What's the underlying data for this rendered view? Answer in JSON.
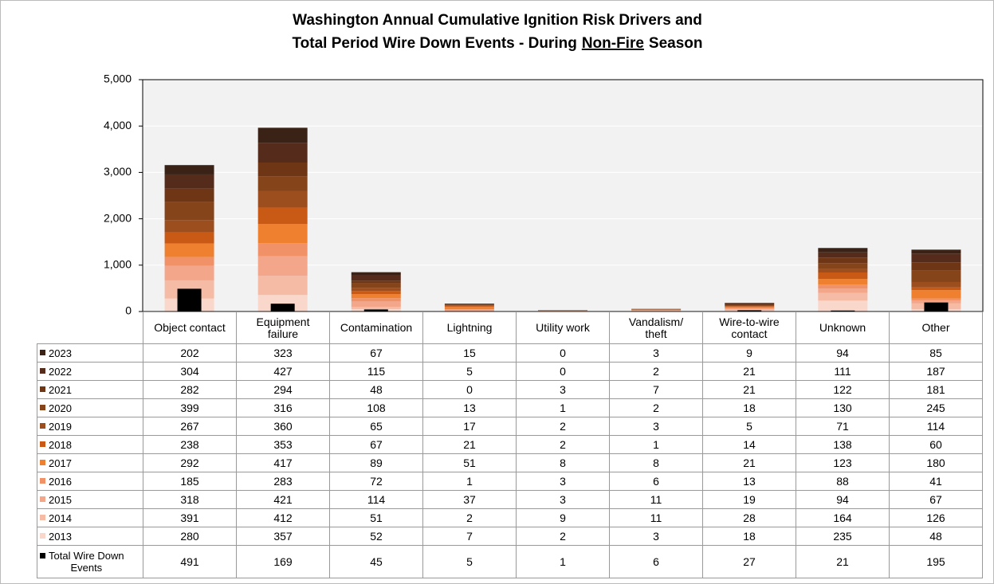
{
  "chart_data": {
    "type": "stacked_bar",
    "title": [
      "Washington Annual Cumulative Ignition Risk Drivers and",
      [
        "Total Period Wire Down Events - During",
        "Non-Fire",
        "Season"
      ]
    ],
    "categories": [
      "Object contact",
      "Equipment\nfailure",
      "Contamination",
      "Lightning",
      "Utility work",
      "Vandalism/\ntheft",
      "Wire-to-wire\ncontact",
      "Unknown",
      "Other"
    ],
    "series": [
      {
        "name": "2023",
        "color": "#3b2216",
        "values": [
          202,
          323,
          67,
          15,
          0,
          3,
          9,
          94,
          85
        ]
      },
      {
        "name": "2022",
        "color": "#552c1c",
        "values": [
          304,
          427,
          115,
          5,
          0,
          2,
          21,
          111,
          187
        ]
      },
      {
        "name": "2021",
        "color": "#6e3615",
        "values": [
          282,
          294,
          48,
          0,
          3,
          7,
          21,
          122,
          181
        ]
      },
      {
        "name": "2020",
        "color": "#86441a",
        "values": [
          399,
          316,
          108,
          13,
          1,
          2,
          18,
          130,
          245
        ]
      },
      {
        "name": "2019",
        "color": "#9c4e1f",
        "values": [
          267,
          360,
          65,
          17,
          2,
          3,
          5,
          71,
          114
        ]
      },
      {
        "name": "2018",
        "color": "#c95a16",
        "values": [
          238,
          353,
          67,
          21,
          2,
          1,
          14,
          138,
          60
        ]
      },
      {
        "name": "2017",
        "color": "#ef8030",
        "values": [
          292,
          417,
          89,
          51,
          8,
          8,
          21,
          123,
          180
        ]
      },
      {
        "name": "2016",
        "color": "#f19168",
        "values": [
          185,
          283,
          72,
          1,
          3,
          6,
          13,
          88,
          41
        ]
      },
      {
        "name": "2015",
        "color": "#f3a68a",
        "values": [
          318,
          421,
          114,
          37,
          3,
          11,
          19,
          94,
          67
        ]
      },
      {
        "name": "2014",
        "color": "#f6bba5",
        "values": [
          391,
          412,
          51,
          2,
          9,
          11,
          28,
          164,
          126
        ]
      },
      {
        "name": "2013",
        "color": "#f9d7ca",
        "values": [
          280,
          357,
          52,
          7,
          2,
          3,
          18,
          235,
          48
        ]
      },
      {
        "name": "Total Wire Down\nEvents",
        "color": "#000000",
        "overlay": true,
        "values": [
          491,
          169,
          45,
          5,
          1,
          6,
          27,
          21,
          195
        ]
      }
    ],
    "ylim": [
      0,
      5000
    ],
    "yticks": [
      0,
      {
        "value": 1000,
        "label": "1,000"
      },
      {
        "value": 2000,
        "label": "2,000"
      },
      {
        "value": 3000,
        "label": "3,000"
      },
      {
        "value": 4000,
        "label": "4,000"
      },
      {
        "value": 5000,
        "label": "5,000"
      }
    ],
    "grid": true
  }
}
